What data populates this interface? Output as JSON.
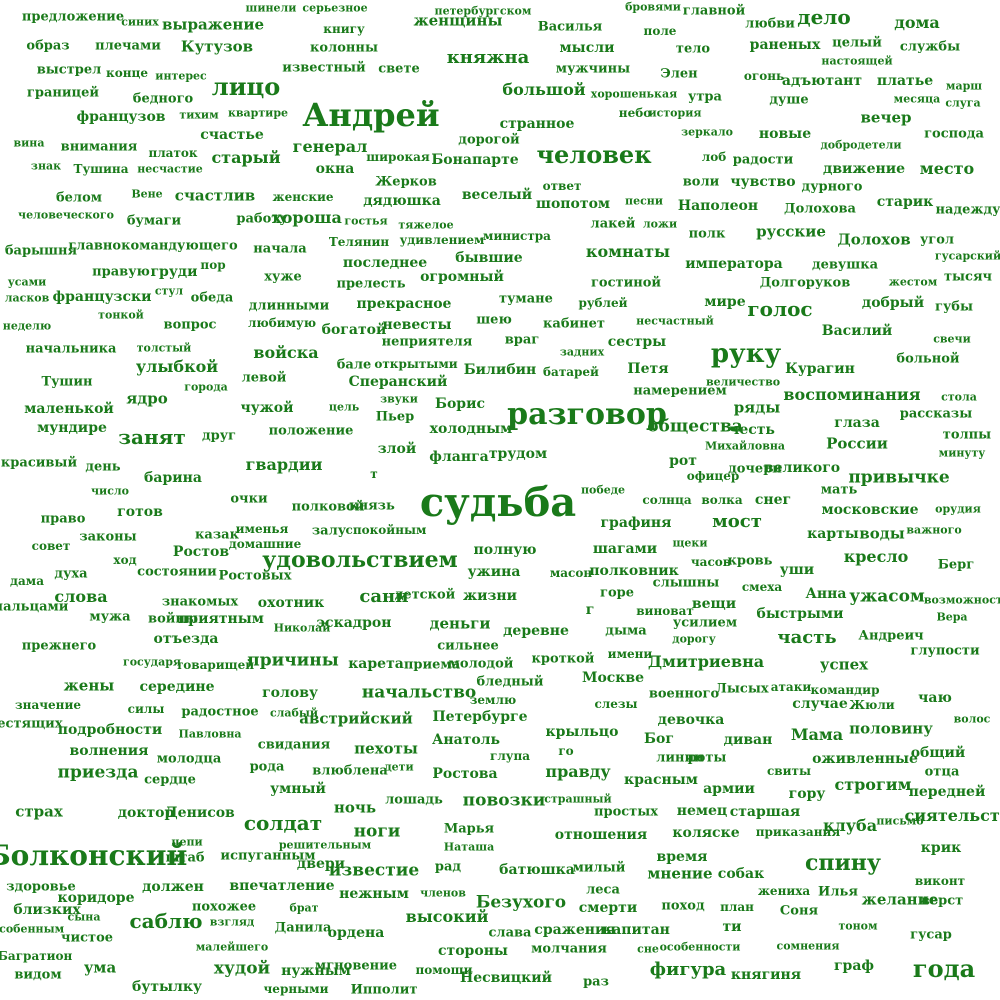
{
  "theme": {
    "word_color": "#1a7a1a",
    "background": "#ffffff"
  },
  "words": [
    "предложение",
    "синих",
    "выражение",
    "шинели",
    "серьезное",
    "книгу",
    "петербургском",
    "бровями",
    "главной",
    "любви",
    "дело",
    "дома",
    "образ",
    "плечами",
    "Кутузов",
    "колонны",
    "женщины",
    "Василья",
    "поле",
    "тело",
    "раненых",
    "целый",
    "настоящей",
    "службы",
    "выстрел",
    "конце",
    "интерес",
    "известный",
    "свете",
    "княжна",
    "мысли",
    "мужчины",
    "Элен",
    "огонь",
    "адъютант",
    "платье",
    "марш",
    "месяца",
    "слуга",
    "границей",
    "бедного",
    "лицо",
    "большой",
    "хорошенькая",
    "утра",
    "душе",
    "французов",
    "тихим",
    "квартире",
    "Андрей",
    "небо",
    "история",
    "вина",
    "внимания",
    "счастье",
    "платок",
    "странное",
    "зеркало",
    "новые",
    "вечер",
    "господа",
    "знак",
    "Тушина",
    "несчастие",
    "генерал",
    "дорогой",
    "добродетели",
    "широкая",
    "окна",
    "Бонапарте",
    "человек",
    "лоб",
    "радости",
    "движение",
    "место",
    "старый",
    "белом",
    "Вене",
    "счастлив",
    "женские",
    "Жерков",
    "ответ",
    "воли",
    "чувство",
    "дурного",
    "человеческого",
    "бумаги",
    "работу",
    "хороша",
    "гостья",
    "дядюшка",
    "веселый",
    "шопотом",
    "песни",
    "Наполеон",
    "Долохова",
    "старик",
    "надежду",
    "тяжелое",
    "лакей",
    "ложи",
    "барышня",
    "главнокомандующего",
    "начала",
    "Телянин",
    "удивлением",
    "министра",
    "полк",
    "русские",
    "Долохов",
    "угол",
    "гусарский",
    "усами",
    "правую",
    "груди",
    "пор",
    "последнее",
    "бывшие",
    "комнаты",
    "императора",
    "девушка",
    "тысяч",
    "ласков",
    "стул",
    "обеда",
    "хуже",
    "огромный",
    "гостиной",
    "жестом",
    "французски",
    "тонкой",
    "прелесть",
    "тумане",
    "Долгоруков",
    "неделю",
    "вопрос",
    "длинными",
    "прекрасное",
    "рублей",
    "мире",
    "голос",
    "добрый",
    "губы",
    "любимую",
    "богатой",
    "невесты",
    "шею",
    "кабинет",
    "несчастный",
    "начальника",
    "толстый",
    "неприятеля",
    "Василий",
    "свечи",
    "войска",
    "враг",
    "сестры",
    "руку",
    "больной",
    "улыбкой",
    "бале",
    "открытыми",
    "задних",
    "Курагин",
    "Тушин",
    "левой",
    "Сперанский",
    "Билибин",
    "батарей",
    "Петя",
    "города",
    "намерением",
    "величество",
    "стола",
    "ядро",
    "звуки",
    "Борис",
    "воспоминания",
    "маленькой",
    "чужой",
    "цель",
    "Пьер",
    "разговор",
    "ряды",
    "рассказы",
    "мундире",
    "положение",
    "холодным",
    "глаза",
    "занят",
    "друг",
    "общества",
    "честь",
    "толпы",
    "злой",
    "Михайловна",
    "России",
    "красивый",
    "трудом",
    "минуту",
    "гвардии",
    "т",
    "флангa",
    "рот",
    "дочери",
    "великого",
    "день",
    "барина",
    "офицер",
    "привычке",
    "число",
    "очки",
    "победе",
    "мать",
    "готов",
    "князь",
    "судьба",
    "солнца",
    "волка",
    "снег",
    "полковой",
    "московские",
    "орудия",
    "право",
    "казак",
    "именья",
    "залу",
    "спокойным",
    "графиня",
    "мост",
    "карты",
    "воды",
    "важного",
    "законы",
    "домашние",
    "щеки",
    "совет",
    "Ростов",
    "удовольствием",
    "полную",
    "шагами",
    "кресло",
    "ход",
    "часов",
    "кровь",
    "уши",
    "состоянии",
    "Ростовых",
    "ужина",
    "масон",
    "полковник",
    "Берг",
    "духа",
    "дама",
    "слышны",
    "смеха",
    "горе",
    "Анна",
    "слова",
    "сани",
    "детской",
    "жизни",
    "ужасом",
    "возможность",
    "знакомых",
    "охотник",
    "г",
    "виноват",
    "вещи",
    "пальцами",
    "мужа",
    "войны",
    "приятным",
    "быстрыми",
    "Вера",
    "эскадрон",
    "деньги",
    "деревне",
    "дымa",
    "усилием",
    "Николай",
    "часть",
    "Андреич",
    "прежнего",
    "отъезда",
    "дорогу",
    "сильнее",
    "глупости",
    "кроткой",
    "имени",
    "государя",
    "причины",
    "карета",
    "приема",
    "молодой",
    "Дмитриевна",
    "успех",
    "товарищей",
    "бледный",
    "Москве",
    "жены",
    "середине",
    "голову",
    "начальство",
    "землю",
    "слезы",
    "военного",
    "Лысых",
    "атаки",
    "командир",
    "Жюли",
    "чаю",
    "случае",
    "радостное",
    "слабый",
    "значение",
    "силы",
    "австрийский",
    "Петербурге",
    "девочка",
    "волос",
    "блестящих",
    "подробности",
    "Павловна",
    "крыльцо",
    "Бог",
    "половину",
    "Анатоль",
    "Мама",
    "диван",
    "волнения",
    "свидания",
    "пехоты",
    "го",
    "молодца",
    "глупа",
    "линии",
    "роты",
    "общий",
    "оживленные",
    "рода",
    "дети",
    "влюблена",
    "Ростова",
    "правду",
    "свиты",
    "отца",
    "приезда",
    "сердце",
    "умный",
    "красным",
    "армии",
    "строгим",
    "передней",
    "гору",
    "лошадь",
    "страх",
    "доктор",
    "Денисов",
    "повозки",
    "страшный",
    "немец",
    "старшая",
    "ночь",
    "простых",
    "письмо",
    "сиятельство",
    "Марья",
    "солдат",
    "ноги",
    "клуба",
    "приказания",
    "отношения",
    "коляске",
    "цепи",
    "решительным",
    "Наташа",
    "Болконский",
    "крик",
    "штаб",
    "испуганным",
    "время",
    "спину",
    "двери",
    "известие",
    "рад",
    "милый",
    "мнение",
    "собак",
    "здоровье",
    "батюшка",
    "должен",
    "впечатление",
    "леса",
    "виконт",
    "коридоре",
    "нежным",
    "членов",
    "жениха",
    "Илья",
    "близких",
    "похожее",
    "брат",
    "желание",
    "верст",
    "сына",
    "Безухого",
    "смерти",
    "поход",
    "план",
    "Соня",
    "саблю",
    "взгляд",
    "высокий",
    "ти",
    "особенным",
    "чистое",
    "Данила",
    "слава",
    "сражения",
    "капитан",
    "тоном",
    "гусар",
    "ордена",
    "малейшего",
    "молчания",
    "сне",
    "особенности",
    "сомнения",
    "Багратион",
    "стороны",
    "худой",
    "мгновение",
    "помощи",
    "видом",
    "ума",
    "нужным",
    "Несвицкий",
    "раз",
    "фигура",
    "княгиня",
    "граф",
    "года",
    "бутылку",
    "черными",
    "Ипполит"
  ]
}
